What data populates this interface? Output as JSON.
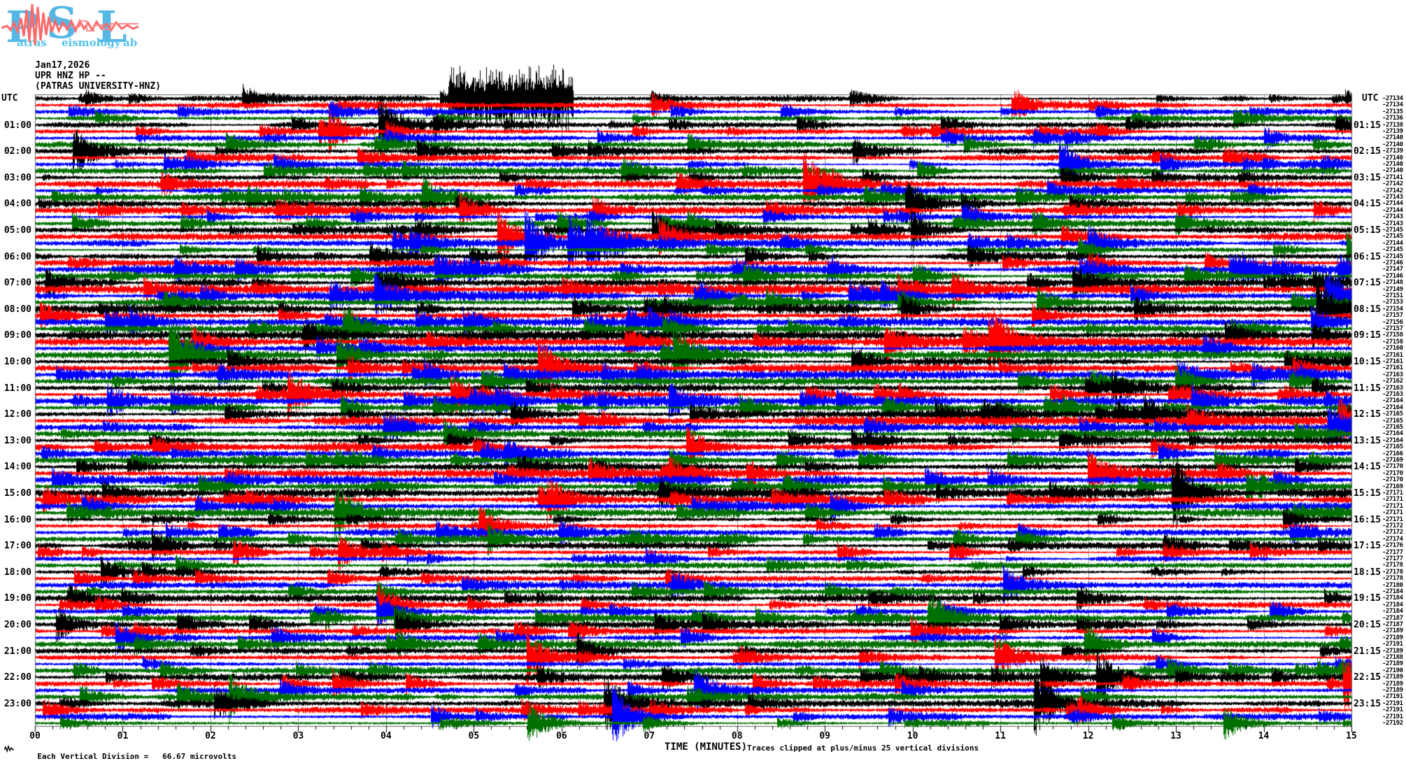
{
  "logo": {
    "letter_p": "P",
    "letter_s": "S",
    "letter_l": "L",
    "word_p": "atras",
    "word_s": "eismology",
    "word_l": "ab",
    "letter_color": "#55b7e6",
    "trace_color": "#ff6a6a"
  },
  "header": {
    "date": "Jan17,2026",
    "channel": "UPR HNZ HP --",
    "station": "(PATRAS UNIVERSITY-HNZ)"
  },
  "axes": {
    "left_top": "UTC",
    "right_top": "UTC",
    "left_hours": [
      "01:00",
      "02:00",
      "03:00",
      "04:00",
      "05:00",
      "06:00",
      "07:00",
      "08:00",
      "09:00",
      "10:00",
      "11:00",
      "12:00",
      "13:00",
      "14:00",
      "15:00",
      "16:00",
      "17:00",
      "18:00",
      "19:00",
      "20:00",
      "21:00",
      "22:00",
      "23:00"
    ],
    "right_hours": [
      "01:15",
      "02:15",
      "03:15",
      "04:15",
      "05:15",
      "06:15",
      "07:15",
      "08:15",
      "09:15",
      "10:15",
      "11:15",
      "12:15",
      "13:15",
      "14:15",
      "15:15",
      "16:15",
      "17:15",
      "18:15",
      "19:15",
      "20:15",
      "21:15",
      "22:15",
      "23:15"
    ]
  },
  "footer": {
    "scale_label": "Each Vertical Division =",
    "scale_value": "66.67 microvolts",
    "xlabel": "TIME (MINUTES)",
    "clip_note": "Traces clipped at plus/minus 25 vertical divisions"
  },
  "chart_data": {
    "type": "line",
    "subtype": "helicorder",
    "title": "UPR HNZ HP -- (PATRAS UNIVERSITY-HNZ)",
    "date": "Jan17,2026",
    "xlabel": "TIME (MINUTES)",
    "x_tick_labels": [
      "00",
      "01",
      "02",
      "03",
      "04",
      "05",
      "06",
      "07",
      "08",
      "09",
      "10",
      "11",
      "12",
      "13",
      "14",
      "15"
    ],
    "x_range_minutes": [
      0,
      15
    ],
    "minutes_per_line": 15,
    "rows": 96,
    "hours": 24,
    "trace_color_cycle": [
      "#000000",
      "#ff0000",
      "#0000ff",
      "#007000"
    ],
    "grid_color": "#999999",
    "frame_color": "#666666",
    "clip_divisions": 25,
    "microvolts_per_division": "66.67",
    "right_edge_counts": [
      -27134,
      -27134,
      -27135,
      -27136,
      -27138,
      -27139,
      -27140,
      -27140,
      -27139,
      -27140,
      -27140,
      -27140,
      -27141,
      -27142,
      -27142,
      -27143,
      -27144,
      -27144,
      -27143,
      -27143,
      -27145,
      -27145,
      -27144,
      -27145,
      -27145,
      -27146,
      -27147,
      -27146,
      -27148,
      -27149,
      -27151,
      -27153,
      -27154,
      -27157,
      -27156,
      -27157,
      -27158,
      -27158,
      -27160,
      -27161,
      -27161,
      -27161,
      -27163,
      -27162,
      -27163,
      -27163,
      -27164,
      -27164,
      -27165,
      -27165,
      -27165,
      -27164,
      -27164,
      -27165,
      -27166,
      -27169,
      -27170,
      -27170,
      -27170,
      -27169,
      -27171,
      -27171,
      -27171,
      -27171,
      -27171,
      -27172,
      -27172,
      -27174,
      -27176,
      -27177,
      -27177,
      -27178,
      -27178,
      -27178,
      -27180,
      -27184,
      -27184,
      -27184,
      -27184,
      -27187,
      -27187,
      -27189,
      -27189,
      -27191,
      -27189,
      -27188,
      -27189,
      -27190,
      -27189,
      -27189,
      -27189,
      -27191,
      -27191,
      -27191,
      -27191,
      -27192
    ]
  }
}
